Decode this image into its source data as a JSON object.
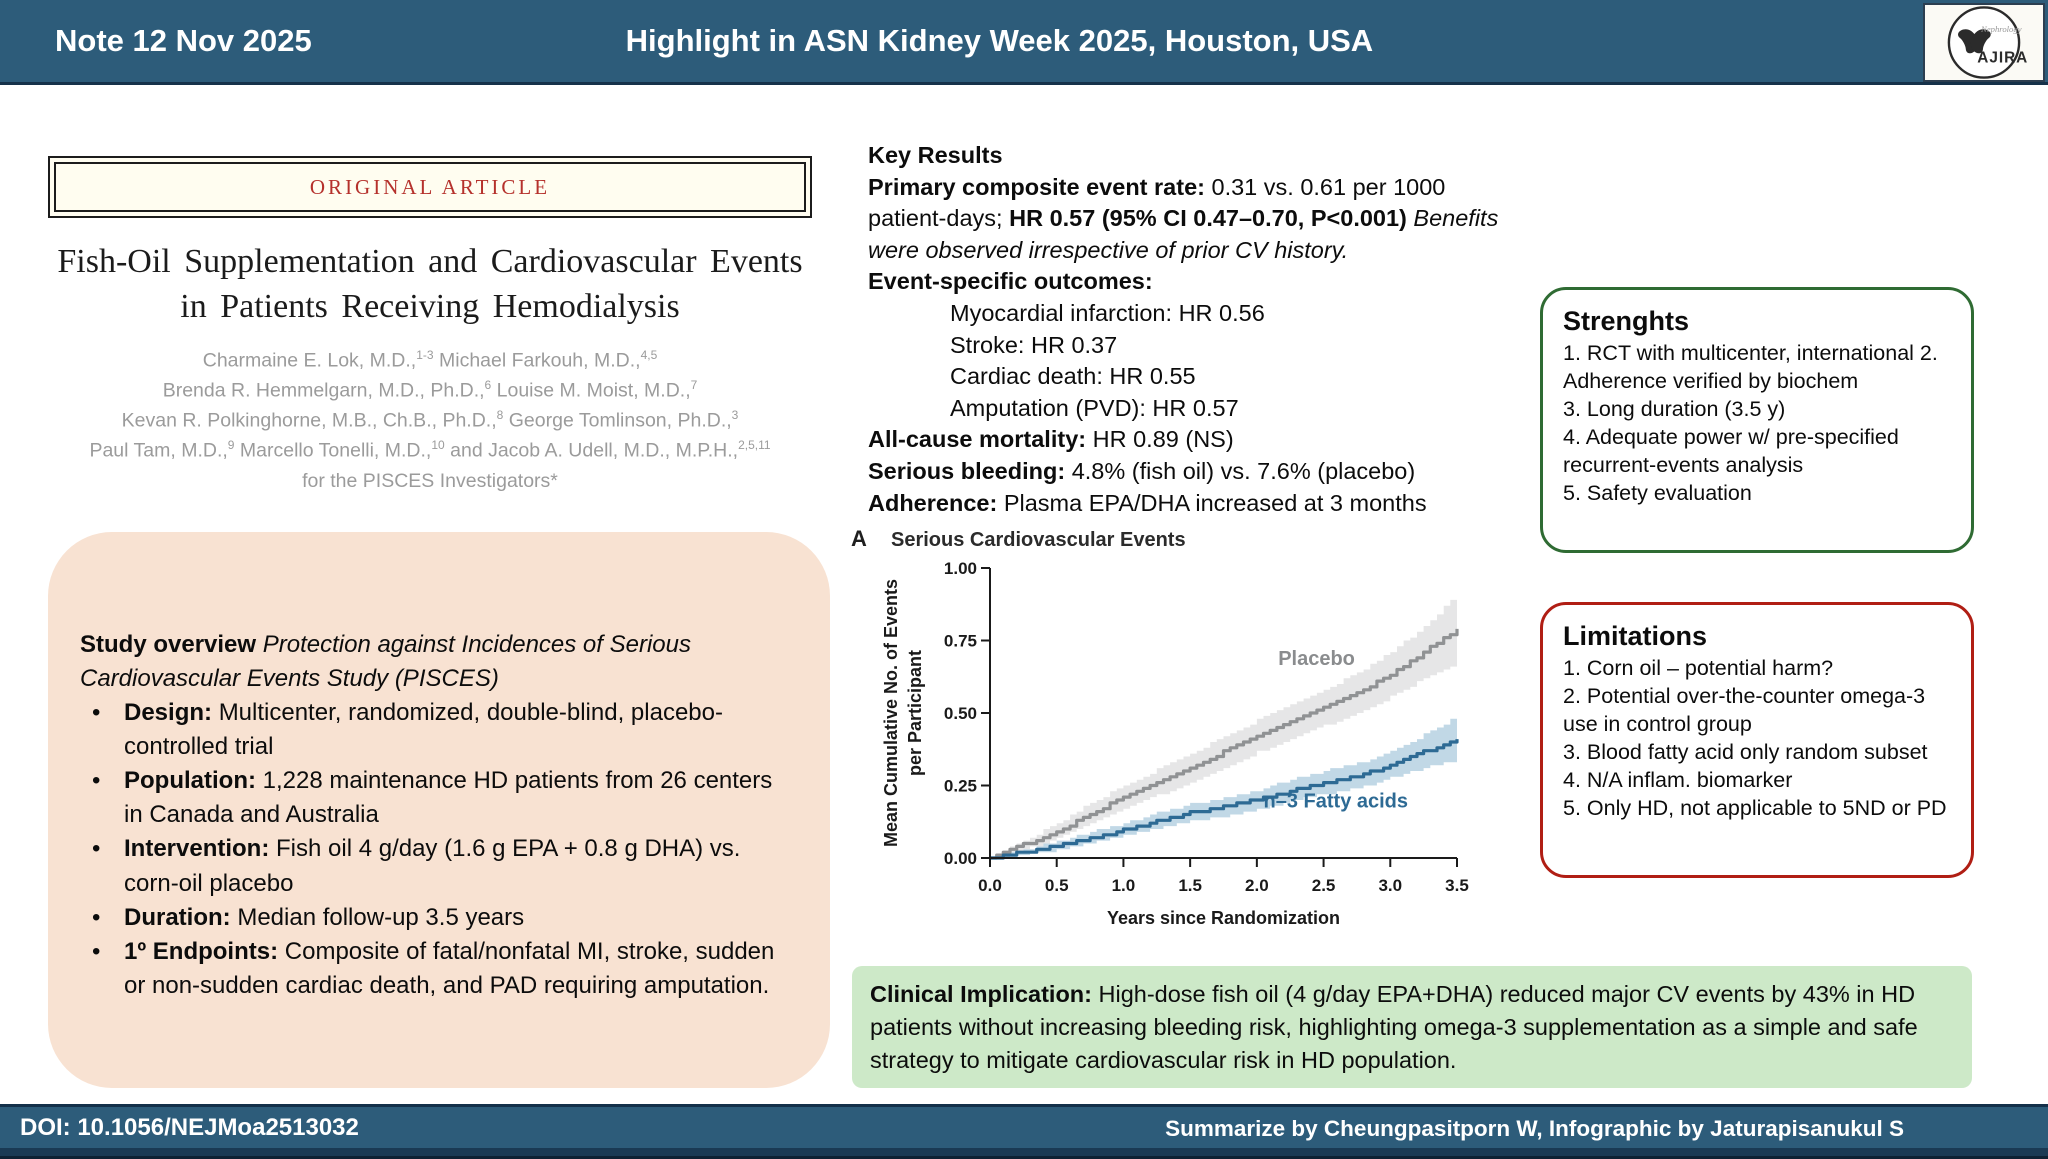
{
  "header": {
    "note": "Note 12 Nov 2025",
    "title": "Highlight in ASN Kidney Week 2025, Houston, USA",
    "logo": {
      "script": "Nephrology",
      "name": "AJIRA"
    }
  },
  "article": {
    "banner": "ORIGINAL ARTICLE",
    "title": "Fish-Oil Supplementation and Cardiovascular Events in Patients Receiving Hemodialysis",
    "author_lines": [
      [
        {
          "t": "Charmaine E. Lok, M.D.,"
        },
        {
          "sup": "1-3"
        },
        {
          "t": " Michael Farkouh, M.D.,"
        },
        {
          "sup": "4,5"
        }
      ],
      [
        {
          "t": "Brenda R. Hemmelgarn, M.D., Ph.D.,"
        },
        {
          "sup": "6"
        },
        {
          "t": " Louise M. Moist, M.D.,"
        },
        {
          "sup": "7"
        }
      ],
      [
        {
          "t": "Kevan R. Polkinghorne, M.B., Ch.B., Ph.D.,"
        },
        {
          "sup": "8"
        },
        {
          "t": " George Tomlinson, Ph.D.,"
        },
        {
          "sup": "3"
        }
      ],
      [
        {
          "t": "Paul Tam, M.D.,"
        },
        {
          "sup": "9"
        },
        {
          "t": " Marcello Tonelli, M.D.,"
        },
        {
          "sup": "10"
        },
        {
          "t": " and Jacob A. Udell, M.D., M.P.H.,"
        },
        {
          "sup": "2,5,11"
        }
      ],
      [
        {
          "t": "for the PISCES Investigators*"
        }
      ]
    ]
  },
  "overview": {
    "intro": [
      {
        "b": true,
        "t": "Study overview "
      },
      {
        "i": true,
        "t": "Protection against Incidences of Serious Cardiovascular Events Study (PISCES)"
      }
    ],
    "bullets": [
      [
        {
          "b": true,
          "t": "Design: "
        },
        {
          "t": "Multicenter, randomized, double-blind, placebo-controlled trial"
        }
      ],
      [
        {
          "b": true,
          "t": "Population: "
        },
        {
          "t": "1,228 maintenance HD patients from 26 centers in Canada and Australia"
        }
      ],
      [
        {
          "b": true,
          "t": "Intervention: "
        },
        {
          "t": "Fish oil 4 g/day (1.6 g EPA + 0.8 g DHA) vs. corn-oil placebo"
        }
      ],
      [
        {
          "b": true,
          "t": "Duration: "
        },
        {
          "t": "Median follow-up 3.5 years"
        }
      ],
      [
        {
          "b": true,
          "t": "1º Endpoints: "
        },
        {
          "t": "Composite of fatal/nonfatal MI, stroke, sudden or non-sudden cardiac death, and PAD requiring amputation."
        }
      ]
    ]
  },
  "key_results": {
    "lines": [
      {
        "segs": [
          {
            "b": true,
            "t": "Key Results"
          }
        ]
      },
      {
        "segs": [
          {
            "b": true,
            "t": "Primary composite event rate: "
          },
          {
            "t": "0.31 vs. 0.61 per 1000 patient-days; "
          },
          {
            "b": true,
            "t": "HR 0.57 (95% CI 0.47–0.70, P<0.001) "
          },
          {
            "i": true,
            "t": "Benefits were observed irrespective of prior CV history."
          }
        ]
      },
      {
        "segs": [
          {
            "b": true,
            "t": "Event-specific outcomes:"
          }
        ]
      },
      {
        "indent": true,
        "segs": [
          {
            "t": "Myocardial infarction: HR 0.56"
          }
        ]
      },
      {
        "indent": true,
        "segs": [
          {
            "t": "Stroke: HR 0.37"
          }
        ]
      },
      {
        "indent": true,
        "segs": [
          {
            "t": "Cardiac death: HR 0.55"
          }
        ]
      },
      {
        "indent": true,
        "segs": [
          {
            "t": "Amputation (PVD): HR 0.57"
          }
        ]
      },
      {
        "segs": [
          {
            "b": true,
            "t": "All-cause mortality: "
          },
          {
            "t": "HR 0.89 (NS)"
          }
        ]
      },
      {
        "segs": [
          {
            "b": true,
            "t": "Serious bleeding: "
          },
          {
            "t": "4.8% (fish oil) vs. 7.6% (placebo)"
          }
        ]
      },
      {
        "segs": [
          {
            "b": true,
            "t": "Adherence: "
          },
          {
            "t": "Plasma EPA/DHA increased at 3 months"
          }
        ]
      }
    ]
  },
  "strengths": {
    "title": "Strenghts",
    "items": [
      "1. RCT with multicenter, international 2. Adherence verified by biochem",
      "3. Long duration (3.5 y)",
      "4. Adequate power w/ pre-specified recurrent-events analysis",
      "5. Safety evaluation"
    ]
  },
  "limitations": {
    "title": "Limitations",
    "items": [
      "1. Corn oil – potential harm?",
      "2. Potential over-the-counter omega-3 use in control group",
      "3. Blood fatty acid only random subset",
      "4. N/A inflam. biomarker",
      "5. Only HD, not applicable to 5ND or PD"
    ]
  },
  "clinical": [
    {
      "b": true,
      "t": "Clinical Implication: "
    },
    {
      "t": "High-dose fish oil (4 g/day EPA+DHA) reduced major CV events by 43% in HD patients without increasing bleeding risk, highlighting omega-3 supplementation as a simple and safe strategy to mitigate cardiovascular risk in HD population."
    }
  ],
  "footer": {
    "doi": "DOI: 10.1056/NEJMoa2513032",
    "credit": "Summarize by Cheungpasitporn W, Infographic by Jaturapisanukul S"
  },
  "colors": {
    "header_bg": "#2d5c7a",
    "footer_strip": "#1a3a54",
    "peach_box": "#f8e2d2",
    "green_box": "#cde9c8",
    "strength_border": "#2f6b33",
    "limitation_border": "#b01e14",
    "banner_red": "#b5312c",
    "chart_blue": "#2d6a94",
    "chart_blue_band": "#b8d3e2",
    "chart_gray": "#909294",
    "chart_gray_band": "#e3e3e4"
  },
  "chart_data": {
    "type": "line",
    "panel_label": "A",
    "title": "Serious Cardiovascular Events",
    "xlabel": "Years since Randomization",
    "ylabel": "Mean Cumulative No. of Events\nper Participant",
    "xlim": [
      0,
      3.5
    ],
    "ylim": [
      0,
      1.0
    ],
    "xticks": [
      "0.0",
      "0.5",
      "1.0",
      "1.5",
      "2.0",
      "2.5",
      "3.0",
      "3.5"
    ],
    "yticks": [
      "0.00",
      "0.25",
      "0.50",
      "0.75",
      "1.00"
    ],
    "grid": false,
    "legend_position": "on-curve",
    "x": [
      0,
      0.25,
      0.5,
      0.75,
      1.0,
      1.25,
      1.5,
      1.75,
      2.0,
      2.25,
      2.5,
      2.75,
      3.0,
      3.25,
      3.5
    ],
    "series": [
      {
        "name": "Placebo",
        "color": "#909294",
        "band_color": "#e3e3e4",
        "label_color": "#8a8c8e",
        "label_pos": [
          2.16,
          0.665
        ],
        "values": [
          0,
          0.045,
          0.09,
          0.15,
          0.21,
          0.26,
          0.31,
          0.365,
          0.42,
          0.47,
          0.52,
          0.57,
          0.63,
          0.71,
          0.79
        ],
        "upper": [
          0,
          0.06,
          0.12,
          0.19,
          0.25,
          0.305,
          0.36,
          0.42,
          0.475,
          0.53,
          0.58,
          0.64,
          0.71,
          0.8,
          0.91
        ],
        "lower": [
          0,
          0.03,
          0.065,
          0.115,
          0.17,
          0.215,
          0.26,
          0.31,
          0.365,
          0.41,
          0.455,
          0.5,
          0.555,
          0.62,
          0.67
        ]
      },
      {
        "name": "n–3 Fatty acids",
        "color": "#2d6a94",
        "band_color": "#b8d3e2",
        "label_color": "#2d6a94",
        "label_pos": [
          2.05,
          0.175
        ],
        "values": [
          0,
          0.02,
          0.04,
          0.065,
          0.095,
          0.125,
          0.155,
          0.175,
          0.2,
          0.23,
          0.26,
          0.28,
          0.32,
          0.365,
          0.41
        ],
        "upper": [
          0,
          0.03,
          0.055,
          0.09,
          0.12,
          0.155,
          0.185,
          0.205,
          0.235,
          0.27,
          0.3,
          0.325,
          0.37,
          0.425,
          0.49
        ],
        "lower": [
          0,
          0.012,
          0.028,
          0.05,
          0.075,
          0.1,
          0.125,
          0.145,
          0.165,
          0.195,
          0.22,
          0.24,
          0.275,
          0.31,
          0.335
        ]
      }
    ]
  }
}
